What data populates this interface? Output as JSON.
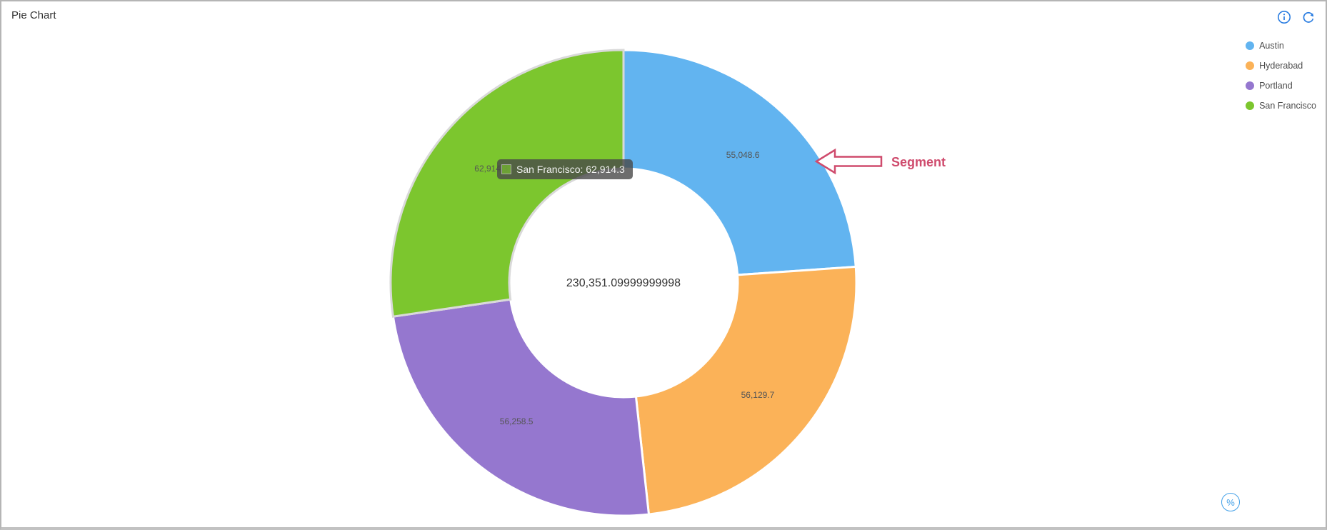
{
  "header": {
    "title": "Pie Chart"
  },
  "toolbar": {
    "info_icon": "info-circle",
    "refresh_icon": "refresh-arrow",
    "icon_color": "#2a7de1"
  },
  "legend": {
    "position": "top-right",
    "items": [
      {
        "label": "Austin",
        "color": "#62b4f0"
      },
      {
        "label": "Hyderabad",
        "color": "#fbb258"
      },
      {
        "label": "Portland",
        "color": "#9577cf"
      },
      {
        "label": "San Francisco",
        "color": "#7cc62e"
      }
    ]
  },
  "chart_data": {
    "type": "pie",
    "subtype": "donut",
    "title": "Pie Chart",
    "categories": [
      "Austin",
      "Hyderabad",
      "Portland",
      "San Francisco"
    ],
    "values": [
      55048.6,
      56129.7,
      56258.5,
      62914.3
    ],
    "value_labels": [
      "55,048.6",
      "56,129.7",
      "56,258.5",
      "62,914.3"
    ],
    "colors": [
      "#62b4f0",
      "#fbb258",
      "#9577cf",
      "#7cc62e"
    ],
    "total": 230351.1,
    "center_total_label": "230,351.09999999998",
    "start_angle_deg": 0,
    "direction": "clockwise",
    "legend_position": "top-right",
    "highlighted_segment": "San Francisco"
  },
  "tooltip": {
    "series": "San Francisco",
    "value": "62,914.3",
    "text": "San Francisco: 62,914.3",
    "swatch_color": "#7cc62e"
  },
  "annotation": {
    "label": "Segment",
    "color": "#cf4b6d"
  },
  "footer": {
    "percent_label": "%"
  }
}
